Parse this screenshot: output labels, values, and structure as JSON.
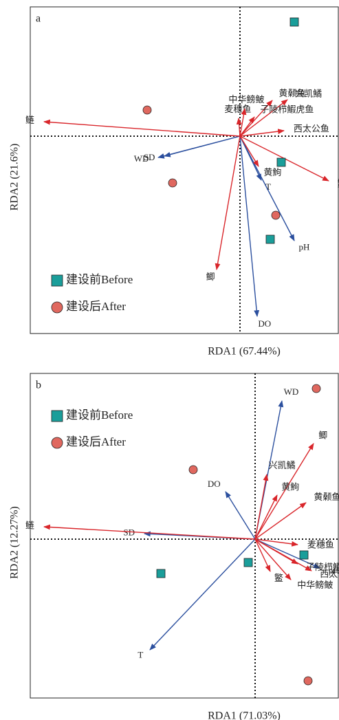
{
  "chart_data": [
    {
      "type": "biplot",
      "panel_label": "a",
      "xlabel": "RDA1 (67.44%)",
      "ylabel": "RDA2 (21.6%)",
      "xlim": [
        -3.05,
        1.43
      ],
      "ylim": [
        -2.87,
        1.88
      ],
      "legend_loc": "lower left",
      "series": [
        {
          "name": "建设前Before",
          "color": "#1a9e9a",
          "marker": "square",
          "x": [
            0.79,
            0.6,
            0.44
          ],
          "y": [
            1.66,
            -0.38,
            -1.5
          ]
        },
        {
          "name": "建设后After",
          "color": "#e0685f",
          "marker": "circle",
          "x": [
            -1.35,
            -0.98,
            0.52
          ],
          "y": [
            0.38,
            -0.68,
            -1.15
          ]
        }
      ],
      "vectors": [
        {
          "color": "#2b4f9e",
          "labels": [
            "WD",
            "SD",
            "T",
            "pH",
            "DO"
          ],
          "x": [
            -1.19,
            -1.1,
            0.31,
            0.79,
            0.25
          ],
          "y": [
            -0.31,
            -0.29,
            -0.64,
            -1.52,
            -2.62
          ]
        },
        {
          "color": "#d9252a",
          "labels": [
            "鲢",
            "麦穗鱼",
            "中华鳑鲏",
            "黄颡鱼",
            "兴凯鱊",
            "子陵栉鰕虎鱼",
            "西太公鱼",
            "鳘",
            "黄鮈",
            "鲫"
          ],
          "x": [
            -2.85,
            -0.02,
            0.07,
            0.47,
            0.69,
            0.21,
            0.64,
            1.29,
            0.27,
            -0.34
          ],
          "y": [
            0.21,
            0.26,
            0.4,
            0.52,
            0.53,
            0.28,
            0.08,
            -0.65,
            -0.44,
            -1.94
          ]
        }
      ]
    },
    {
      "type": "biplot",
      "panel_label": "b",
      "xlabel": "RDA1 (71.03%)",
      "ylabel": "RDA2 (12.27%)",
      "xlim": [
        -3.27,
        1.21
      ],
      "ylim": [
        -2.31,
        2.41
      ],
      "legend_loc": "upper left",
      "series": [
        {
          "name": "建设前Before",
          "color": "#1a9e9a",
          "marker": "square",
          "x": [
            0.71,
            -0.1,
            -1.37
          ],
          "y": [
            -0.23,
            -0.34,
            -0.5
          ]
        },
        {
          "name": "建设后After",
          "color": "#e0685f",
          "marker": "circle",
          "x": [
            0.89,
            -0.9,
            0.77
          ],
          "y": [
            2.19,
            1.01,
            -2.06
          ]
        }
      ],
      "vectors": [
        {
          "color": "#2b4f9e",
          "labels": [
            "WD",
            "DO",
            "SD",
            "T",
            "pH"
          ],
          "x": [
            0.39,
            -0.43,
            -1.61,
            -1.53,
            0.94
          ],
          "y": [
            2.01,
            0.69,
            0.08,
            -1.61,
            -0.42
          ]
        },
        {
          "color": "#d9252a",
          "labels": [
            "鲢",
            "鲫",
            "兴凯鱊",
            "黄鮈",
            "黄颡鱼",
            "麦穗鱼",
            "子陵栉鰕虎鱼",
            "西太公鱼",
            "中华鳑鲏",
            "鳘"
          ],
          "x": [
            -3.07,
            0.85,
            0.17,
            0.32,
            0.74,
            0.62,
            0.62,
            0.82,
            0.52,
            0.22
          ],
          "y": [
            0.18,
            1.39,
            0.94,
            0.64,
            0.53,
            -0.08,
            -0.36,
            -0.46,
            -0.59,
            -0.47
          ]
        }
      ]
    }
  ]
}
